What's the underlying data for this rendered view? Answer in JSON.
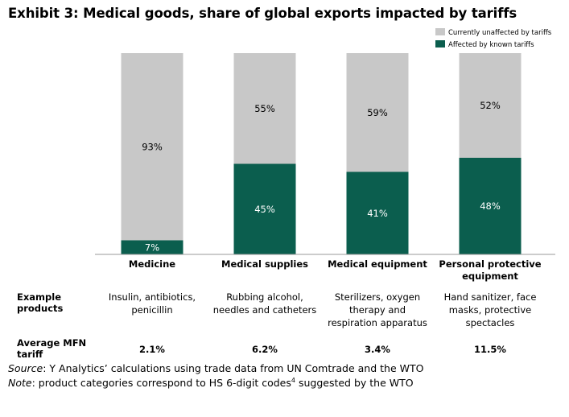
{
  "title": "Exhibit 3: Medical goods, share of global exports impacted by tariffs",
  "chart_data": {
    "type": "bar",
    "stacked": true,
    "categories": [
      "Medicine",
      "Medical supplies",
      "Medical equipment",
      "Personal protective equipment"
    ],
    "series": [
      {
        "name": "Affected by known tariffs",
        "values": [
          7,
          45,
          41,
          48
        ],
        "color": "#0b5e4e"
      },
      {
        "name": "Currently unaffected by tariffs",
        "values": [
          93,
          55,
          59,
          52
        ],
        "color": "#c8c8c8"
      }
    ],
    "data_labels": [
      {
        "affected": "7%",
        "unaffected": "93%"
      },
      {
        "affected": "45%",
        "unaffected": "55%"
      },
      {
        "affected": "41%",
        "unaffected": "59%"
      },
      {
        "affected": "48%",
        "unaffected": "52%"
      }
    ],
    "ylim": [
      0,
      100
    ],
    "legend_position": "top-right",
    "grid": false,
    "xlabel": "",
    "ylabel": ""
  },
  "legend": {
    "unaffected": "Currently unaffected by tariffs",
    "affected": "Affected by known tariffs"
  },
  "category_labels": {
    "medicine": "Medicine",
    "supplies": "Medical supplies",
    "equipment": "Medical equipment",
    "ppe_line1": "Personal protective",
    "ppe_line2": "equipment"
  },
  "table": {
    "example_label_line1": "Example",
    "example_label_line2": "products",
    "examples": [
      [
        "Insulin, antibiotics,",
        "penicillin"
      ],
      [
        "Rubbing alcohol,",
        "needles and catheters"
      ],
      [
        "Sterilizers, oxygen",
        "therapy and",
        "respiration apparatus"
      ],
      [
        "Hand sanitizer, face",
        "masks, protective",
        "spectacles"
      ]
    ],
    "tariff_label_line1": "Average MFN",
    "tariff_label_line2": "tariff",
    "tariffs": [
      "2.1%",
      "6.2%",
      "3.4%",
      "11.5%"
    ]
  },
  "footnotes": {
    "source_label": "Source",
    "source_text": ": Y Analytics’ calculations using trade data from UN Comtrade and the WTO",
    "note_label": "Note",
    "note_text_before": ": product categories correspond to HS 6-digit codes",
    "note_sup": "4",
    "note_text_after": " suggested by the WTO"
  }
}
